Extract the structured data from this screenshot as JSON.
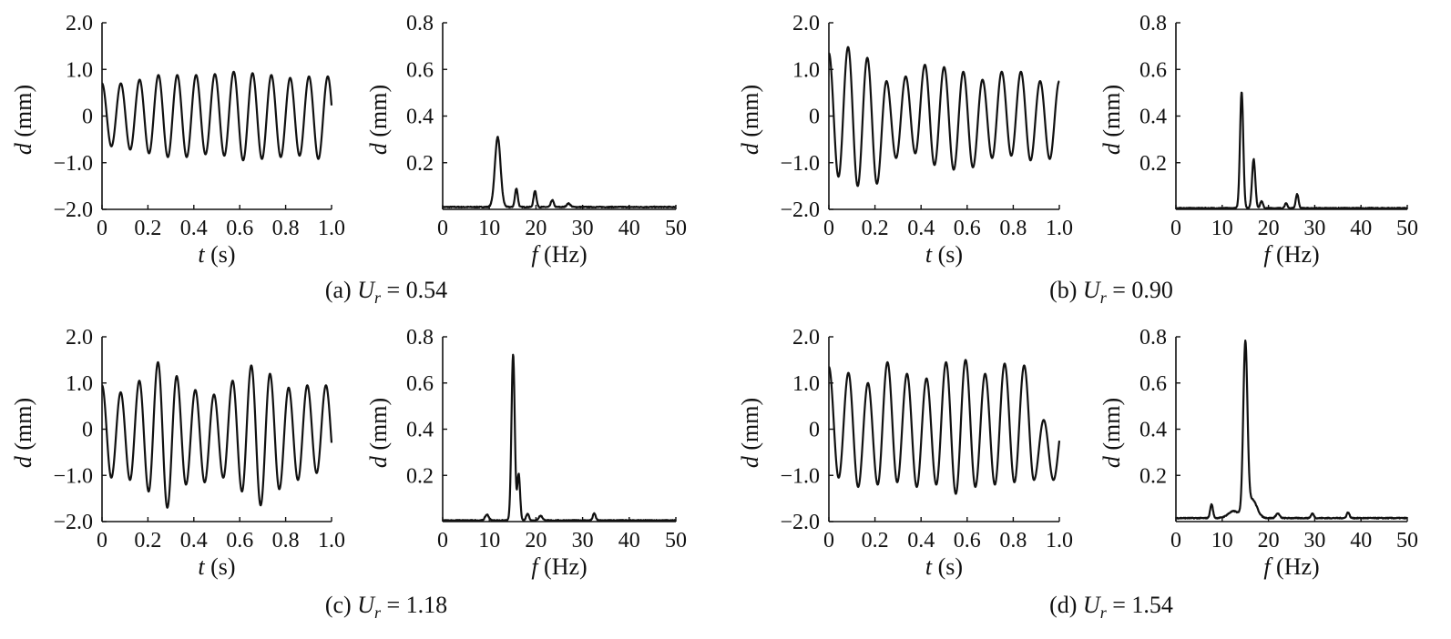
{
  "panels": [
    {
      "id": "a",
      "label": "(a)",
      "var": "U",
      "sub": "r",
      "eq": " = ",
      "value": "0.54"
    },
    {
      "id": "b",
      "label": "(b)",
      "var": "U",
      "sub": "r",
      "eq": " = ",
      "value": "0.90"
    },
    {
      "id": "c",
      "label": "(c)",
      "var": "U",
      "sub": "r",
      "eq": " = ",
      "value": "1.18"
    },
    {
      "id": "d",
      "label": "(d)",
      "var": "U",
      "sub": "r",
      "eq": " = ",
      "value": "1.54"
    }
  ],
  "time_axis": {
    "xlabel_var": "t",
    "xlabel_unit": " (s)",
    "ylabel_var": "d",
    "ylabel_unit": " (mm)",
    "xticks": [
      "0",
      "0.2",
      "0.4",
      "0.6",
      "0.8",
      "1.0"
    ],
    "yticks": [
      "2.0",
      "1.0",
      "0",
      "−1.0",
      "−2.0"
    ]
  },
  "freq_axis": {
    "xlabel_var": "f",
    "xlabel_unit": " (Hz)",
    "ylabel_var": "d",
    "ylabel_unit": " (mm)",
    "xticks": [
      "0",
      "10",
      "20",
      "30",
      "40",
      "50"
    ],
    "yticks": [
      "0.8",
      "0.6",
      "0.4",
      "0.2"
    ]
  },
  "chart_data": [
    {
      "type": "line",
      "panel": "a",
      "kind": "time",
      "xlabel": "t (s)",
      "ylabel": "d (mm)",
      "xlim": [
        0,
        1.0
      ],
      "ylim": [
        -2.0,
        2.0
      ],
      "signal": {
        "frequency_hz": 12.2,
        "peaks": [
          0.7,
          0.7,
          0.78,
          0.88,
          0.88,
          0.88,
          0.9,
          0.95,
          0.92,
          0.88,
          0.82,
          0.85,
          0.85
        ],
        "troughs": [
          -0.65,
          -0.72,
          -0.8,
          -0.88,
          -0.88,
          -0.82,
          -0.85,
          -0.95,
          -0.92,
          -0.88,
          -0.85,
          -0.92,
          -0.95
        ]
      },
      "color": "#111111"
    },
    {
      "type": "line",
      "panel": "a",
      "kind": "spectrum",
      "xlabel": "f (Hz)",
      "ylabel": "d (mm)",
      "xlim": [
        0,
        50
      ],
      "ylim": [
        0,
        0.8
      ],
      "baseline": 0.01,
      "peaks": [
        {
          "f": 11.8,
          "a": 0.3,
          "w": 0.6
        },
        {
          "f": 15.8,
          "a": 0.08,
          "w": 0.3
        },
        {
          "f": 19.8,
          "a": 0.07,
          "w": 0.3
        },
        {
          "f": 23.5,
          "a": 0.03,
          "w": 0.3
        },
        {
          "f": 27.0,
          "a": 0.015,
          "w": 0.4
        }
      ],
      "color": "#111111"
    },
    {
      "type": "line",
      "panel": "b",
      "kind": "time",
      "xlabel": "t (s)",
      "ylabel": "d (mm)",
      "xlim": [
        0,
        1.0
      ],
      "ylim": [
        -2.0,
        2.0
      ],
      "signal": {
        "frequency_hz": 12.0,
        "peaks": [
          1.35,
          1.48,
          1.25,
          0.75,
          0.85,
          1.1,
          1.05,
          0.95,
          0.78,
          0.95,
          0.95,
          0.75
        ],
        "troughs": [
          -1.3,
          -1.5,
          -1.45,
          -0.9,
          -0.8,
          -1.05,
          -1.15,
          -1.1,
          -0.9,
          -0.85,
          -0.95,
          -0.92
        ]
      },
      "color": "#111111"
    },
    {
      "type": "line",
      "panel": "b",
      "kind": "spectrum",
      "xlabel": "f (Hz)",
      "ylabel": "d (mm)",
      "xlim": [
        0,
        50
      ],
      "ylim": [
        0,
        0.8
      ],
      "baseline": 0.005,
      "peaks": [
        {
          "f": 14.2,
          "a": 0.5,
          "w": 0.35
        },
        {
          "f": 16.8,
          "a": 0.21,
          "w": 0.35
        },
        {
          "f": 18.5,
          "a": 0.03,
          "w": 0.3
        },
        {
          "f": 23.8,
          "a": 0.02,
          "w": 0.3
        },
        {
          "f": 26.2,
          "a": 0.06,
          "w": 0.3
        }
      ],
      "color": "#111111"
    },
    {
      "type": "line",
      "panel": "c",
      "kind": "time",
      "xlabel": "t (s)",
      "ylabel": "d (mm)",
      "xlim": [
        0,
        1.0
      ],
      "ylim": [
        -2.0,
        2.0
      ],
      "signal": {
        "frequency_hz": 12.3,
        "peaks": [
          0.95,
          0.8,
          1.05,
          1.45,
          1.15,
          0.85,
          0.75,
          1.05,
          1.38,
          1.2,
          0.9,
          0.95
        ],
        "troughs": [
          -1.05,
          -1.1,
          -1.35,
          -1.7,
          -1.2,
          -1.15,
          -1.05,
          -1.35,
          -1.65,
          -1.3,
          -1.1,
          -0.95
        ]
      },
      "color": "#111111"
    },
    {
      "type": "line",
      "panel": "c",
      "kind": "spectrum",
      "xlabel": "f (Hz)",
      "ylabel": "d (mm)",
      "xlim": [
        0,
        50
      ],
      "ylim": [
        0,
        0.8
      ],
      "baseline": 0.005,
      "peaks": [
        {
          "f": 9.5,
          "a": 0.025,
          "w": 0.4
        },
        {
          "f": 15.1,
          "a": 0.72,
          "w": 0.35
        },
        {
          "f": 16.3,
          "a": 0.2,
          "w": 0.3
        },
        {
          "f": 18.2,
          "a": 0.03,
          "w": 0.3
        },
        {
          "f": 21.0,
          "a": 0.02,
          "w": 0.4
        },
        {
          "f": 32.5,
          "a": 0.03,
          "w": 0.3
        }
      ],
      "color": "#111111"
    },
    {
      "type": "line",
      "panel": "d",
      "kind": "time",
      "xlabel": "t (s)",
      "ylabel": "d (mm)",
      "xlim": [
        0,
        1.0
      ],
      "ylim": [
        -2.0,
        2.0
      ],
      "signal": {
        "frequency_hz": 11.8,
        "peaks": [
          1.35,
          1.22,
          1.0,
          1.45,
          1.2,
          1.1,
          1.45,
          1.5,
          1.2,
          1.42,
          1.38,
          0.2
        ],
        "troughs": [
          -1.05,
          -1.25,
          -1.2,
          -1.15,
          -1.25,
          -1.2,
          -1.4,
          -1.25,
          -1.2,
          -1.15,
          -1.1,
          -1.1
        ]
      },
      "color": "#111111"
    },
    {
      "type": "line",
      "panel": "d",
      "kind": "spectrum",
      "xlabel": "f (Hz)",
      "ylabel": "d (mm)",
      "xlim": [
        0,
        50
      ],
      "ylim": [
        0,
        0.8
      ],
      "baseline": 0.015,
      "peaks": [
        {
          "f": 7.7,
          "a": 0.06,
          "w": 0.3
        },
        {
          "f": 12.5,
          "a": 0.03,
          "w": 1.2
        },
        {
          "f": 15.0,
          "a": 0.74,
          "w": 0.45
        },
        {
          "f": 16.5,
          "a": 0.08,
          "w": 1.0
        },
        {
          "f": 22.0,
          "a": 0.02,
          "w": 0.4
        },
        {
          "f": 29.5,
          "a": 0.02,
          "w": 0.3
        },
        {
          "f": 37.2,
          "a": 0.025,
          "w": 0.3
        }
      ],
      "color": "#111111"
    }
  ]
}
